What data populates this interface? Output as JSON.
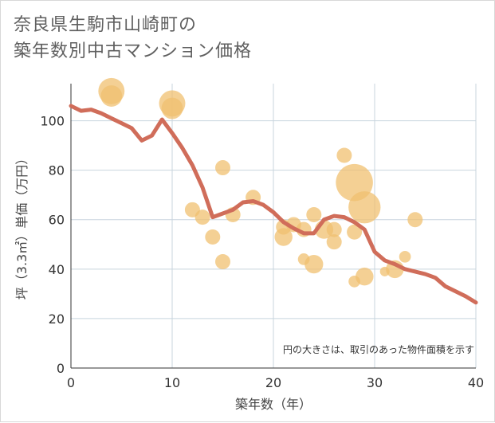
{
  "title": "奈良県生駒市山崎町の\n築年数別中古マンション価格",
  "chart_data": {
    "type": "scatter",
    "title": "奈良県生駒市山崎町の築年数別中古マンション価格",
    "xlabel": "築年数（年）",
    "ylabel": "坪（3.3㎡）単価（万円）",
    "xlim": [
      0,
      40
    ],
    "ylim": [
      0,
      115
    ],
    "xticks": [
      0,
      10,
      20,
      30,
      40
    ],
    "yticks": [
      0,
      20,
      40,
      60,
      80,
      100
    ],
    "grid": true,
    "note": "円の大きさは、取引のあった物件面積を示す",
    "colors": {
      "bubble": "#f0c070",
      "line": "#d06d5a",
      "grid": "#c8d4de"
    },
    "scatter": [
      {
        "x": 4,
        "y": 112,
        "size": 3.0
      },
      {
        "x": 4,
        "y": 110,
        "size": 2.0
      },
      {
        "x": 10,
        "y": 107,
        "size": 3.0
      },
      {
        "x": 10,
        "y": 105,
        "size": 2.0
      },
      {
        "x": 12,
        "y": 64,
        "size": 1.0
      },
      {
        "x": 13,
        "y": 61,
        "size": 1.0
      },
      {
        "x": 14,
        "y": 53,
        "size": 1.0
      },
      {
        "x": 15,
        "y": 81,
        "size": 1.0
      },
      {
        "x": 15,
        "y": 43,
        "size": 1.0
      },
      {
        "x": 16,
        "y": 62,
        "size": 1.0
      },
      {
        "x": 18,
        "y": 69,
        "size": 1.0
      },
      {
        "x": 21,
        "y": 57,
        "size": 1.0
      },
      {
        "x": 21,
        "y": 53,
        "size": 1.4
      },
      {
        "x": 22,
        "y": 58,
        "size": 1.0
      },
      {
        "x": 23,
        "y": 56,
        "size": 1.0
      },
      {
        "x": 23,
        "y": 44,
        "size": 0.6
      },
      {
        "x": 24,
        "y": 62,
        "size": 1.0
      },
      {
        "x": 24,
        "y": 42,
        "size": 1.5
      },
      {
        "x": 25,
        "y": 56,
        "size": 1.5
      },
      {
        "x": 26,
        "y": 56,
        "size": 1.0
      },
      {
        "x": 26,
        "y": 51,
        "size": 1.0
      },
      {
        "x": 27,
        "y": 86,
        "size": 1.0
      },
      {
        "x": 28,
        "y": 75,
        "size": 6.0
      },
      {
        "x": 28,
        "y": 55,
        "size": 1.0
      },
      {
        "x": 28,
        "y": 35,
        "size": 0.6
      },
      {
        "x": 29,
        "y": 65,
        "size": 4.5
      },
      {
        "x": 29,
        "y": 37,
        "size": 1.4
      },
      {
        "x": 31,
        "y": 39,
        "size": 0.4
      },
      {
        "x": 32,
        "y": 40,
        "size": 1.4
      },
      {
        "x": 33,
        "y": 45,
        "size": 0.6
      },
      {
        "x": 34,
        "y": 60,
        "size": 1.0
      }
    ],
    "line": {
      "x": [
        0,
        1,
        2,
        3,
        4,
        5,
        6,
        7,
        8,
        9,
        10,
        11,
        12,
        13,
        14,
        15,
        16,
        17,
        18,
        19,
        20,
        21,
        22,
        23,
        24,
        25,
        26,
        27,
        28,
        29,
        30,
        31,
        32,
        33,
        34,
        35,
        36,
        37,
        38,
        39,
        40
      ],
      "y": [
        106,
        104,
        104.5,
        103,
        101,
        99,
        97,
        92,
        94,
        100.5,
        95,
        89,
        82,
        73,
        61,
        62.5,
        64,
        67,
        67.5,
        66,
        63,
        59,
        56.5,
        54.5,
        54.5,
        60,
        61.5,
        61,
        59,
        56,
        47,
        43.5,
        42,
        40,
        39,
        38,
        36.5,
        33,
        31,
        29,
        26.5
      ]
    }
  }
}
